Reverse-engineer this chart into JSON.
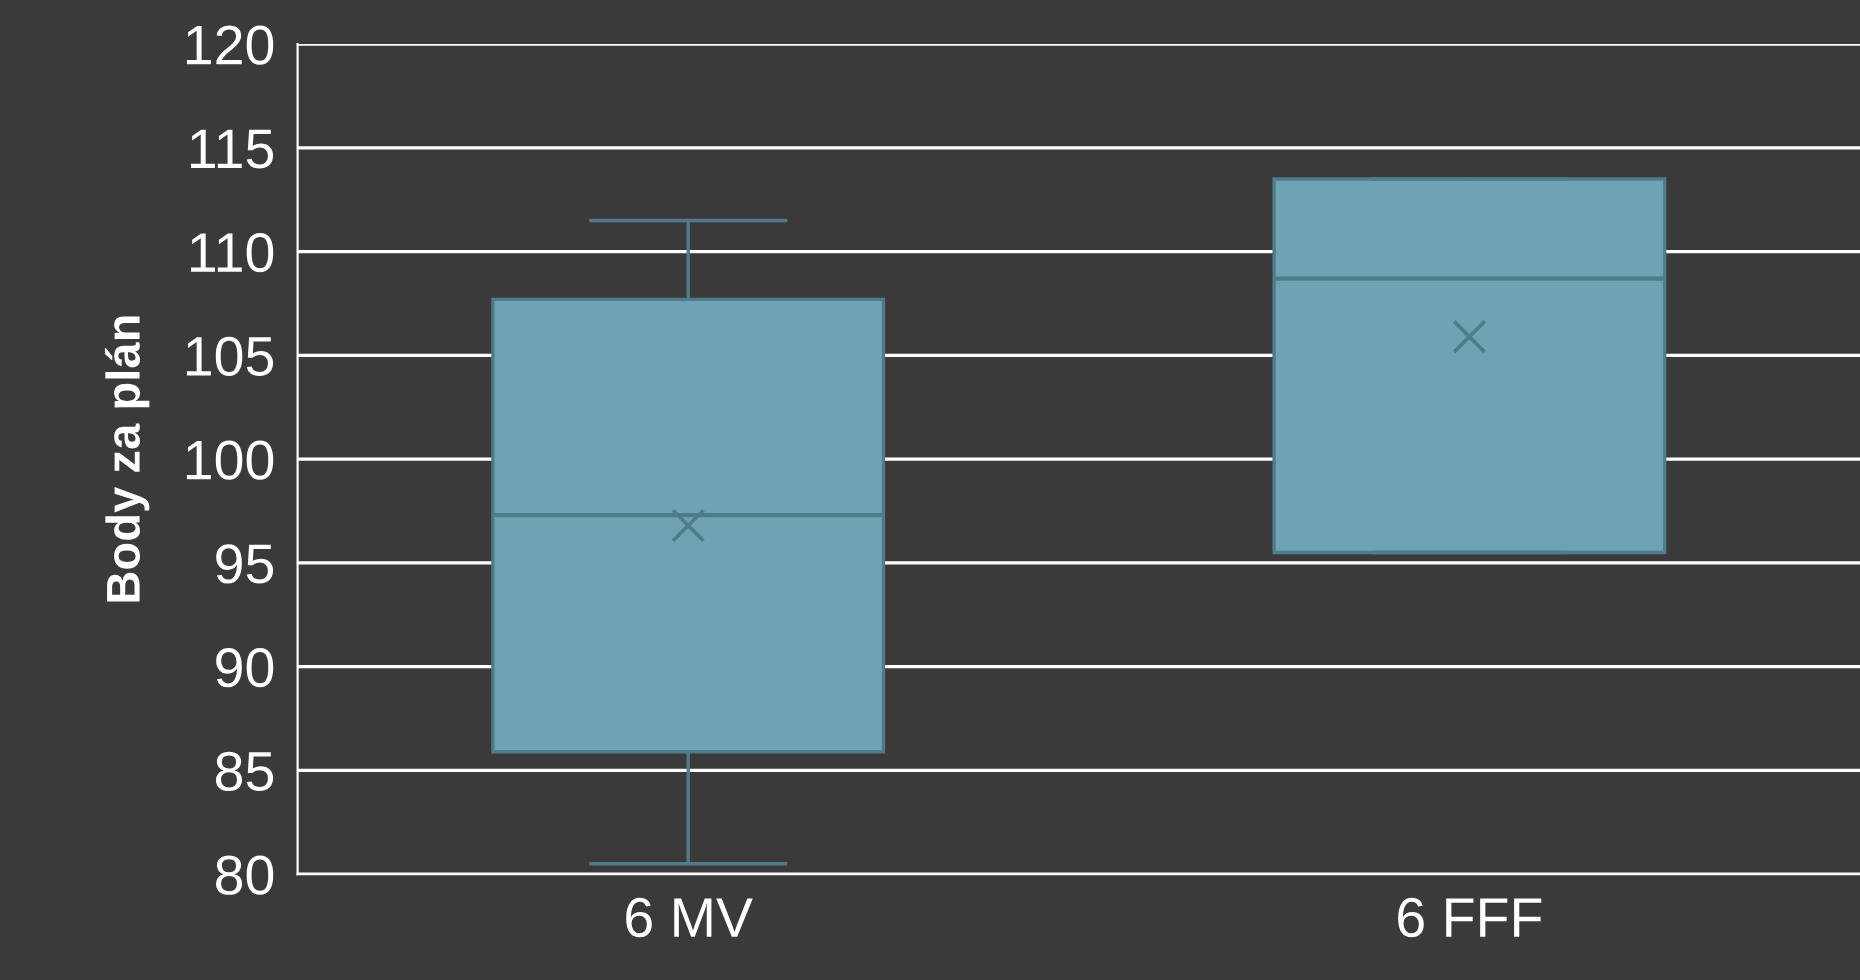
{
  "chart_data": {
    "type": "box",
    "ylabel": "Body za plán",
    "categories": [
      "6 MV",
      "6 FFF"
    ],
    "boxes": [
      {
        "low": 80.5,
        "q1": 85.9,
        "median": 97.3,
        "q3": 107.7,
        "high": 111.5,
        "mean": 96.8
      },
      {
        "low": 95.5,
        "q1": 95.5,
        "median": 108.7,
        "q3": 113.5,
        "high": 113.5,
        "mean": 105.9
      }
    ],
    "color": "#6fa3b3",
    "ylim": [
      80,
      120
    ],
    "yticks": [
      80,
      85,
      90,
      95,
      100,
      105,
      110,
      115,
      120
    ],
    "grid": "y"
  }
}
